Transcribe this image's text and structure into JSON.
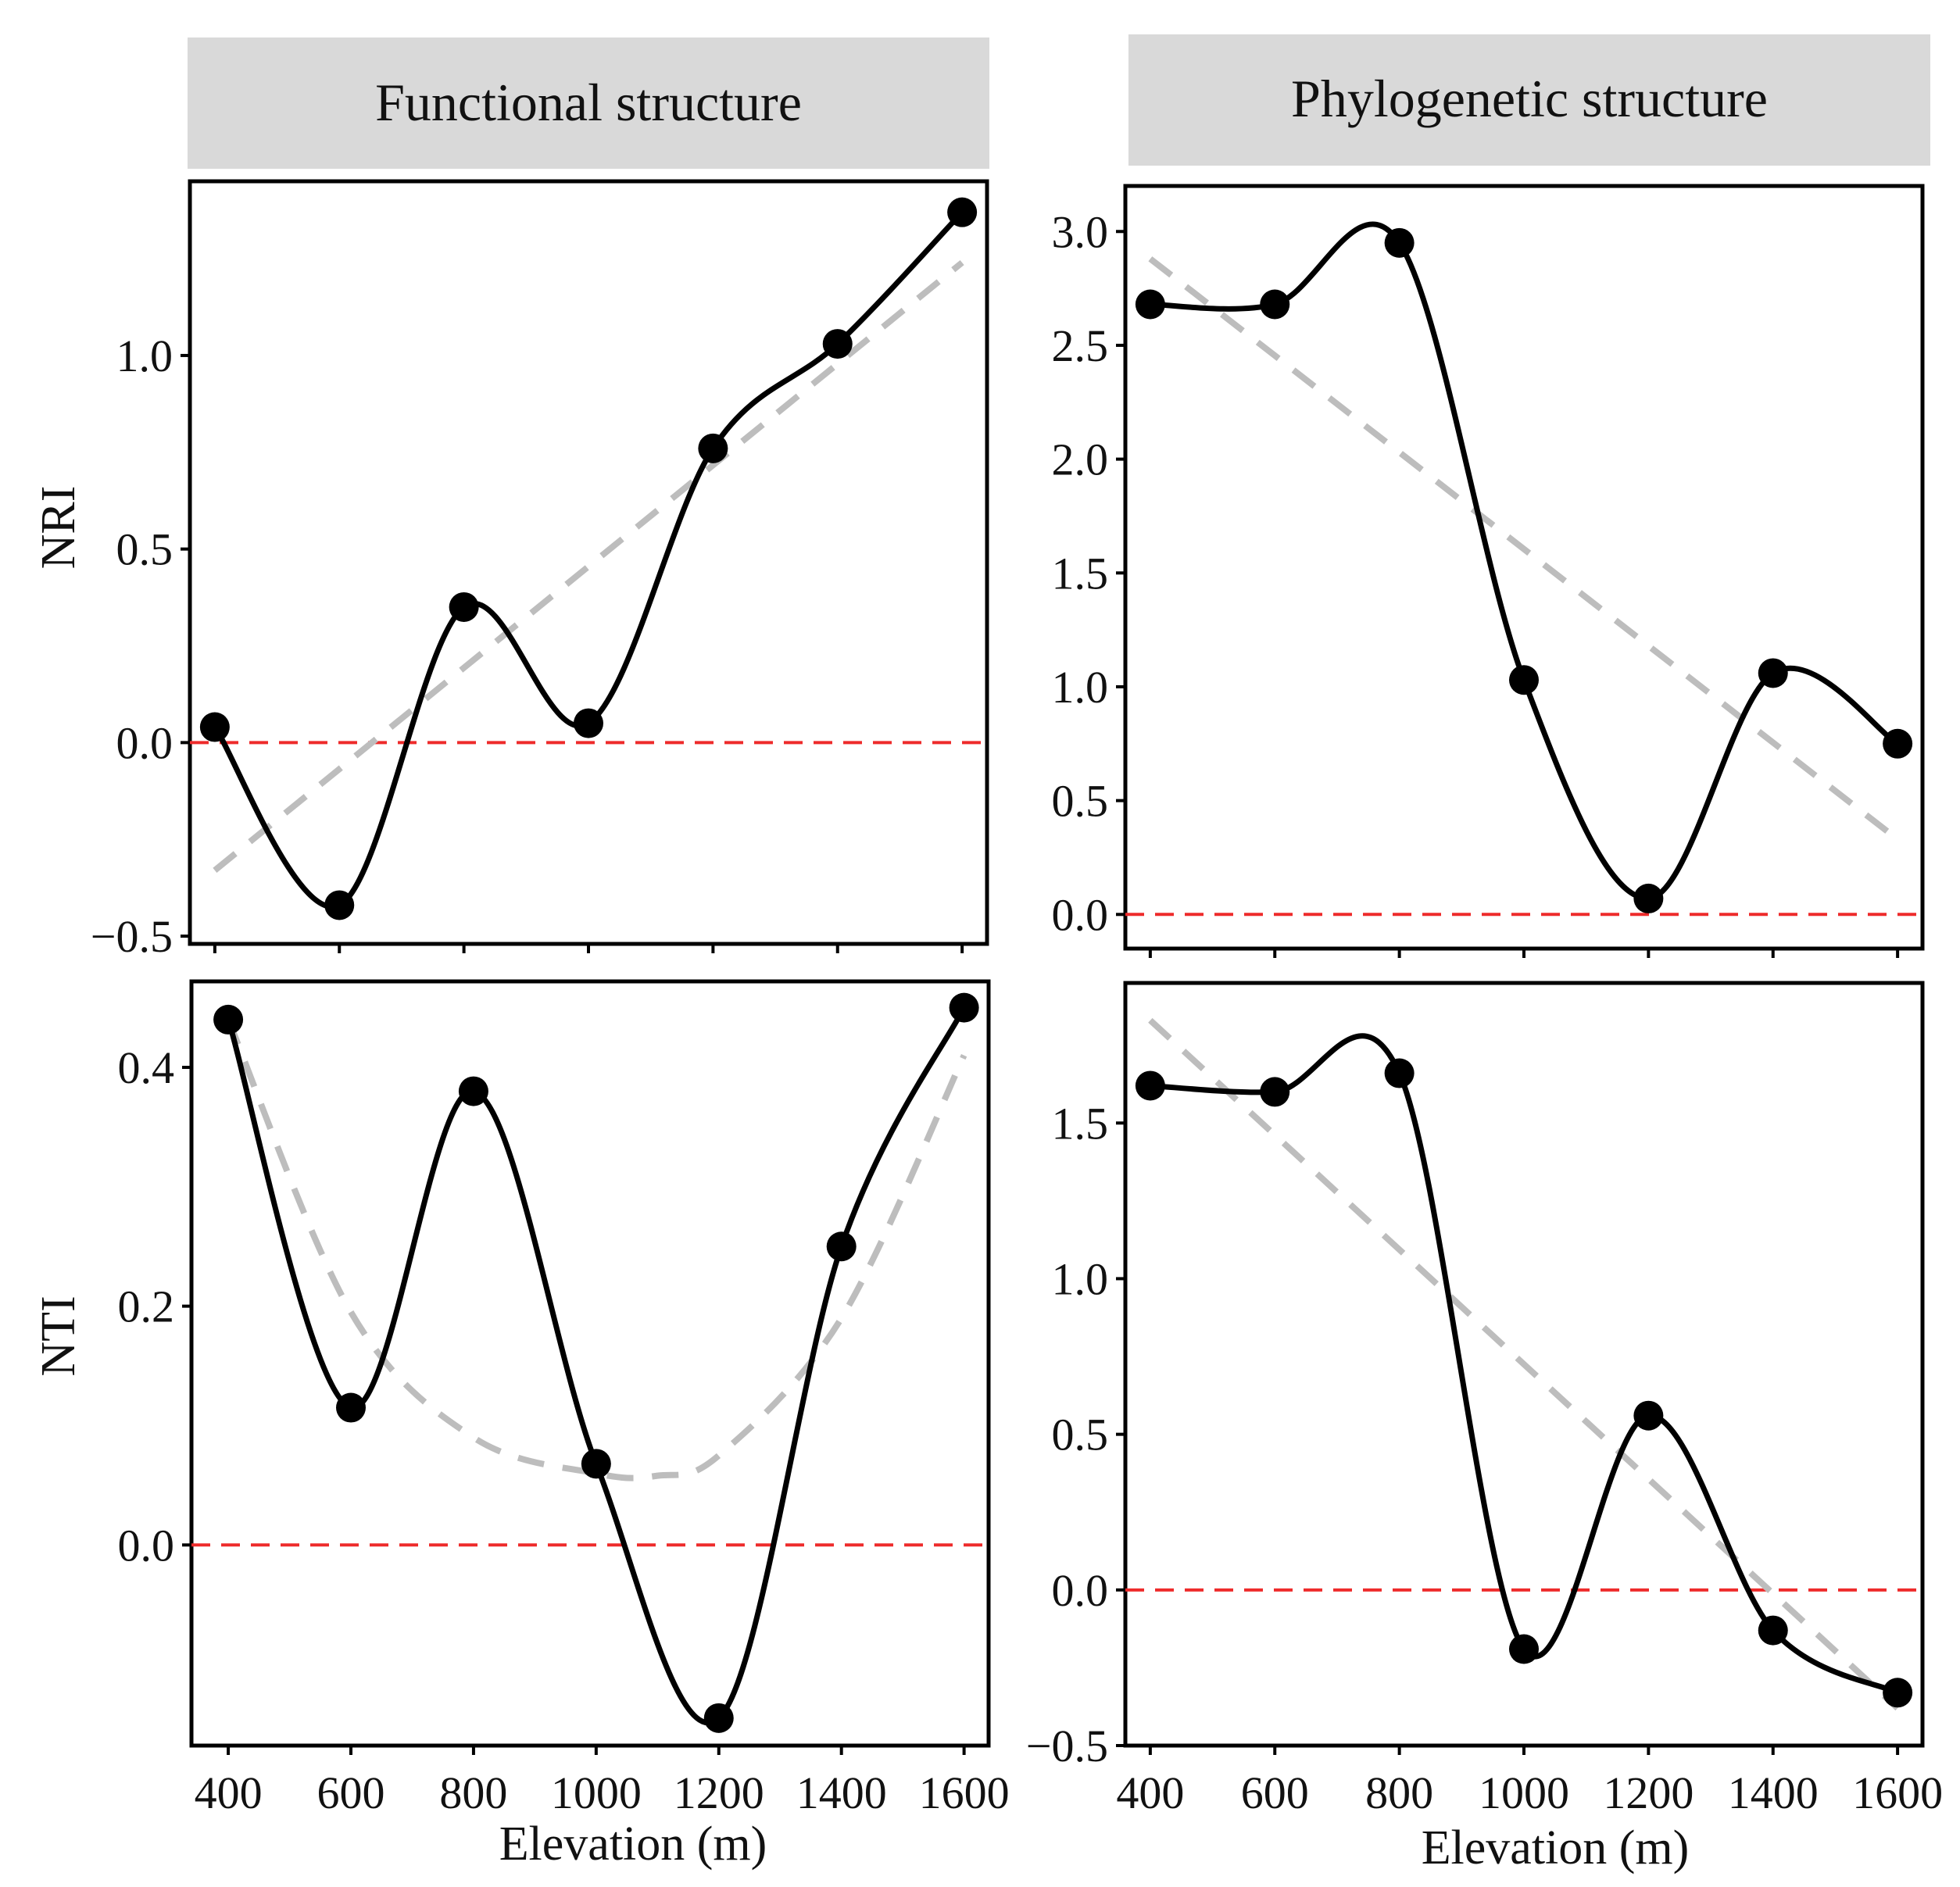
{
  "colors": {
    "strip_bg": "#d9d9d9",
    "data_line": "#000000",
    "trend_line": "#bdbdbd",
    "zero_line": "#ee2b2b",
    "frame": "#000000"
  },
  "strips": {
    "left": "Functional structure",
    "right": "Phylogenetic structure"
  },
  "row_labels": {
    "top": "NRI",
    "bottom": "NTI"
  },
  "x_label": "Elevation (m)",
  "chart_data": [
    {
      "id": "fnri",
      "type": "line",
      "panel": "Functional structure",
      "ylabel": "NRI",
      "xlabel": "",
      "x": [
        400,
        600,
        800,
        1000,
        1200,
        1400,
        1600
      ],
      "values": [
        0.04,
        -0.42,
        0.35,
        0.05,
        0.76,
        1.03,
        1.37
      ],
      "trend": {
        "kind": "linear",
        "points": [
          [
            400,
            -0.33
          ],
          [
            1600,
            1.24
          ]
        ]
      },
      "reference_line": 0,
      "xlim": [
        360,
        1640
      ],
      "ylim": [
        -0.52,
        1.45
      ],
      "yticks": [
        -0.5,
        0.0,
        0.5,
        1.0
      ],
      "ytick_labels": [
        "−0.5",
        "0.0",
        "0.5",
        "1.0"
      ],
      "xticks": [
        400,
        600,
        800,
        1000,
        1200,
        1400,
        1600
      ],
      "xtick_labels": []
    },
    {
      "id": "pnri",
      "type": "line",
      "panel": "Phylogenetic structure",
      "ylabel": "",
      "xlabel": "",
      "x": [
        400,
        600,
        800,
        1000,
        1200,
        1400,
        1600
      ],
      "values": [
        2.68,
        2.68,
        2.95,
        1.03,
        0.07,
        1.06,
        0.75
      ],
      "trend": {
        "kind": "linear",
        "points": [
          [
            400,
            2.88
          ],
          [
            1600,
            0.33
          ]
        ]
      },
      "reference_line": 0,
      "xlim": [
        360,
        1640
      ],
      "ylim": [
        -0.15,
        3.2
      ],
      "yticks": [
        0.0,
        0.5,
        1.0,
        1.5,
        2.0,
        2.5,
        3.0
      ],
      "ytick_labels": [
        "0.0",
        "0.5",
        "1.0",
        "1.5",
        "2.0",
        "2.5",
        "3.0"
      ],
      "xticks": [
        400,
        600,
        800,
        1000,
        1200,
        1400,
        1600
      ],
      "xtick_labels": []
    },
    {
      "id": "fnti",
      "type": "line",
      "panel": "Functional structure",
      "ylabel": "NTI",
      "xlabel": "Elevation (m)",
      "x": [
        400,
        600,
        800,
        1000,
        1200,
        1400,
        1600
      ],
      "values": [
        0.44,
        0.115,
        0.38,
        0.068,
        -0.145,
        0.25,
        0.45
      ],
      "trend": {
        "kind": "quadratic",
        "points": [
          [
            400,
            0.44
          ],
          [
            600,
            0.195
          ],
          [
            800,
            0.09
          ],
          [
            1000,
            0.06
          ],
          [
            1100,
            0.058
          ],
          [
            1200,
            0.075
          ],
          [
            1400,
            0.19
          ],
          [
            1600,
            0.41
          ]
        ]
      },
      "reference_line": 0,
      "xlim": [
        340,
        1640
      ],
      "ylim": [
        -0.168,
        0.472
      ],
      "yticks": [
        0.0,
        0.2,
        0.4
      ],
      "ytick_labels": [
        "0.0",
        "0.2",
        "0.4"
      ],
      "xticks": [
        400,
        600,
        800,
        1000,
        1200,
        1400,
        1600
      ],
      "xtick_labels": [
        "400",
        "600",
        "800",
        "1000",
        "1200",
        "1400",
        "1600"
      ]
    },
    {
      "id": "pnti",
      "type": "line",
      "panel": "Phylogenetic structure",
      "ylabel": "",
      "xlabel": "Elevation (m)",
      "x": [
        400,
        600,
        800,
        1000,
        1200,
        1400,
        1600
      ],
      "values": [
        1.62,
        1.6,
        1.66,
        -0.19,
        0.56,
        -0.13,
        -0.33
      ],
      "trend": {
        "kind": "linear",
        "points": [
          [
            400,
            1.83
          ],
          [
            1600,
            -0.38
          ]
        ]
      },
      "reference_line": 0,
      "xlim": [
        360,
        1640
      ],
      "ylim": [
        -0.5,
        1.95
      ],
      "yticks": [
        -0.5,
        0.0,
        0.5,
        1.0,
        1.5
      ],
      "ytick_labels": [
        "−0.5",
        "0.0",
        "0.5",
        "1.0",
        "1.5"
      ],
      "xticks": [
        400,
        600,
        800,
        1000,
        1200,
        1400,
        1600
      ],
      "xtick_labels": [
        "400",
        "600",
        "800",
        "1000",
        "1200",
        "1400",
        "1600"
      ]
    }
  ]
}
